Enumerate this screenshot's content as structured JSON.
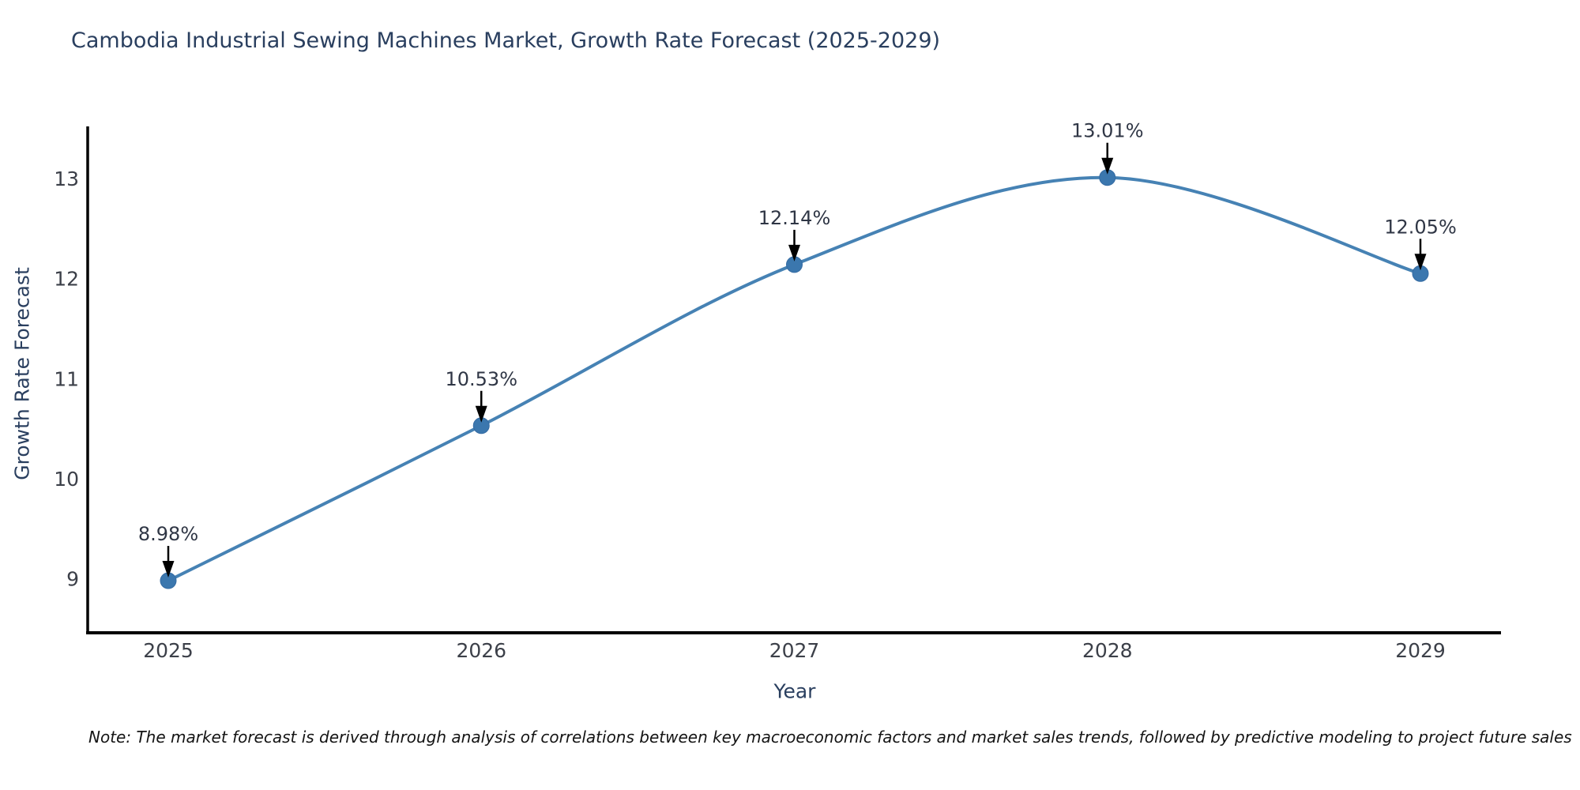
{
  "note": "Note: The market forecast is derived through analysis of correlations between key macroeconomic factors and market sales trends, followed by predictive modeling to project future sales",
  "chart_data": {
    "type": "line",
    "title": "Cambodia Industrial Sewing Machines Market, Growth Rate Forecast (2025-2029)",
    "xlabel": "Year",
    "ylabel": "Growth Rate Forecast",
    "categories": [
      "2025",
      "2026",
      "2027",
      "2028",
      "2029"
    ],
    "series": [
      {
        "name": "Growth Rate Forecast",
        "values": [
          8.98,
          10.53,
          12.14,
          13.01,
          12.05
        ]
      }
    ],
    "point_labels": [
      "8.98%",
      "10.53%",
      "12.14%",
      "13.01%",
      "12.05%"
    ],
    "yticks": [
      9,
      10,
      11,
      12,
      13
    ],
    "ylim": [
      8.46,
      13.53
    ],
    "line_shape": "spline",
    "grid": false,
    "legend": "none",
    "annotation_style": "down-arrow-above-point",
    "colors": {
      "line": "#4682b4",
      "marker_fill": "#3b77ae",
      "marker_edge": "#356ba3",
      "axis_line": "#000000",
      "title_text": "#2a3f5f",
      "tick_text": "#3c4049",
      "annotation_text": "#2f3645",
      "arrow": "#000000",
      "background": "#ffffff"
    }
  }
}
